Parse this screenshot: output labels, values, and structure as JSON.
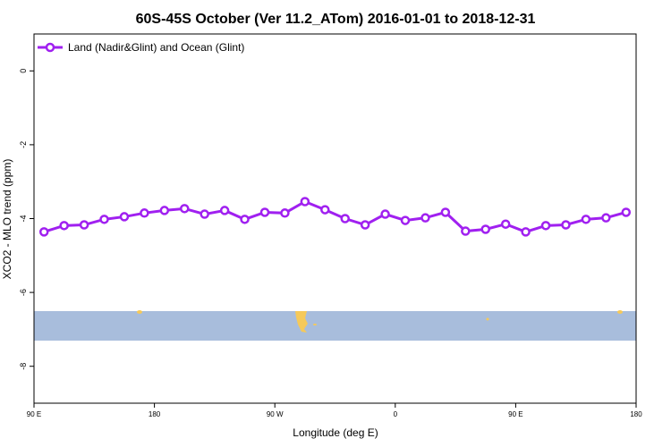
{
  "chart_data": {
    "type": "line",
    "title": "60S-45S October (Ver 11.2_ATom)   2016-01-01 to 2018-12-31",
    "x_label": "Longitude (deg E)",
    "y_label": "XCO2 - MLO trend (ppm)",
    "x": [
      97.5,
      112.5,
      127.5,
      142.5,
      157.5,
      172.5,
      187.5,
      202.5,
      217.5,
      232.5,
      247.5,
      262.5,
      277.5,
      292.5,
      307.5,
      322.5,
      337.5,
      352.5,
      367.5,
      382.5,
      397.5,
      412.5,
      427.5,
      442.5,
      457.5,
      472.5,
      487.5,
      502.5,
      517.5,
      532.5
    ],
    "series": [
      {
        "name": "Land (Nadir&Glint) and Ocean (Glint)",
        "color": "#a020f0",
        "values": [
          -4.36,
          -4.19,
          -4.17,
          -4.02,
          -3.95,
          -3.85,
          -3.78,
          -3.73,
          -3.88,
          -3.78,
          -4.02,
          -3.83,
          -3.85,
          -3.54,
          -3.76,
          -4.0,
          -4.17,
          -3.88,
          -4.05,
          -3.98,
          -3.83,
          -4.34,
          -4.29,
          -4.15,
          -4.36,
          -4.19,
          -4.17,
          -4.02,
          -3.98,
          -3.83
        ]
      }
    ],
    "xlim": [
      90,
      540
    ],
    "xticks": [
      {
        "value": 90,
        "label": "90 E"
      },
      180,
      {
        "value": 270,
        "label": "90 W"
      },
      {
        "value": 360,
        "label": "0"
      },
      {
        "value": 450,
        "label": "90 E"
      },
      {
        "value": 540,
        "label": "180"
      }
    ],
    "ylim": [
      -9,
      1
    ],
    "yticks": [
      0,
      -2,
      -4,
      -6,
      -8
    ],
    "legend": "top-left"
  }
}
